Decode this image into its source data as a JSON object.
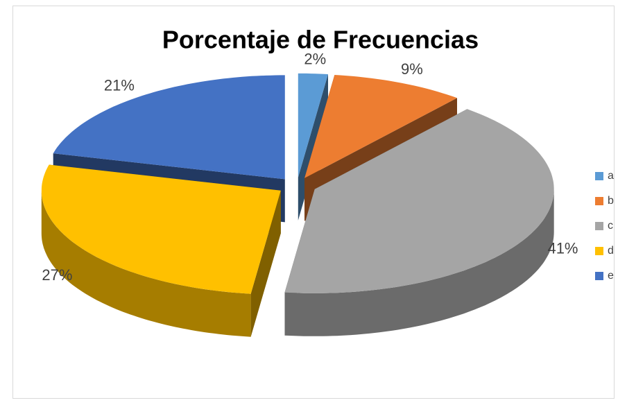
{
  "chart_data": {
    "type": "pie3d",
    "title": "Porcentaje de Frecuencias",
    "categories": [
      "a",
      "b",
      "c",
      "d",
      "e"
    ],
    "values": [
      2,
      9,
      41,
      27,
      21
    ],
    "value_labels": [
      "2%",
      "9%",
      "41%",
      "27%",
      "21%"
    ],
    "colors": [
      "#5b9bd5",
      "#ed7d31",
      "#a5a5a5",
      "#ffc000",
      "#4472c4"
    ],
    "legend": "right"
  }
}
